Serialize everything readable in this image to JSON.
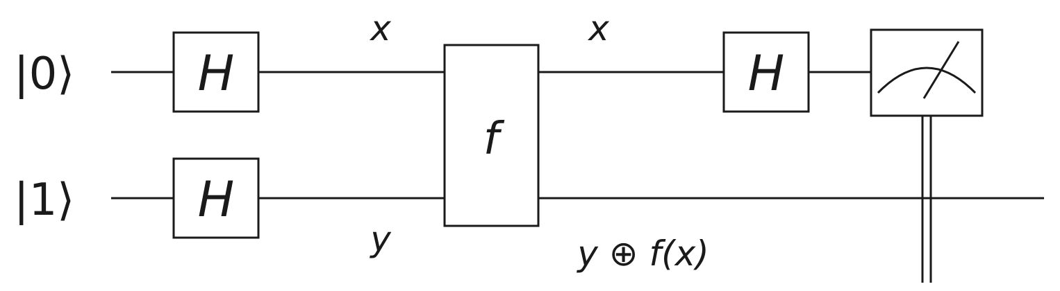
{
  "inputs": {
    "top": "|0⟩",
    "bottom": "|1⟩"
  },
  "gates": {
    "hadamard_top_1": "H",
    "hadamard_bottom": "H",
    "oracle": "f",
    "hadamard_top_2": "H"
  },
  "wire_labels": {
    "top_before_oracle": "x",
    "bottom_before_oracle": "y",
    "top_after_oracle": "x",
    "bottom_after_oracle": "y ⊕ f(x)"
  },
  "icons": {
    "measurement": "measurement-meter-icon"
  }
}
